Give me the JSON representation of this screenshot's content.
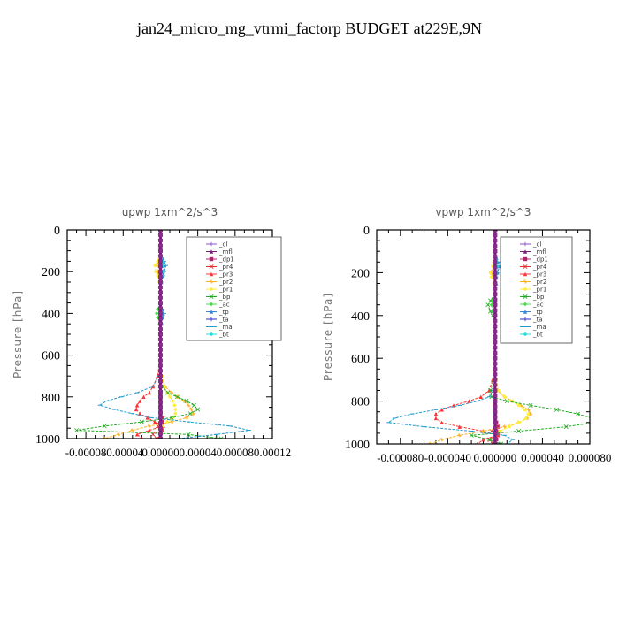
{
  "figure": {
    "title": "jan24_micro_mg_vtrmi_factorp  BUDGET at229E,9N"
  },
  "chart_data": [
    {
      "type": "line",
      "title": "upwp   1xm^2/s^3",
      "ylabel": "Pressure [hPa]",
      "xlabel": "",
      "ylim": [
        0,
        1000
      ],
      "y_inverted": true,
      "xlim": [
        -0.0001,
        0.00012
      ],
      "xticks": [
        -8e-05,
        -4e-05,
        0.0,
        4e-05,
        8e-05,
        0.00012
      ],
      "xtick_labels": [
        "-0.00008",
        "-0.00004",
        "0.00000",
        "0.00004",
        "0.00008",
        "0.00012"
      ],
      "yticks": [
        0,
        200,
        400,
        600,
        800,
        1000
      ],
      "ytick_labels": [
        "0",
        "200",
        "400",
        "600",
        "800",
        "1000"
      ],
      "legend_position": "top-right",
      "y": [
        0,
        100,
        150,
        170,
        200,
        220,
        250,
        300,
        350,
        380,
        400,
        420,
        450,
        500,
        600,
        700,
        750,
        780,
        800,
        820,
        840,
        860,
        880,
        900,
        920,
        940,
        960,
        980,
        1000
      ],
      "series": [
        {
          "name": "_cl",
          "color": "#8a4fc8",
          "marker": "plus",
          "values": [
            0,
            0,
            0,
            0,
            0,
            0,
            0,
            0,
            0,
            0,
            0,
            0,
            0,
            0,
            0,
            0,
            0,
            0,
            0,
            0,
            0,
            0,
            0,
            0,
            0,
            0,
            0,
            0,
            0
          ]
        },
        {
          "name": "_mfl",
          "color": "#7a1a7a",
          "marker": "tri",
          "values": [
            0,
            0,
            0,
            0,
            0,
            0,
            0,
            0,
            0,
            0,
            0,
            0,
            0,
            0,
            0,
            0,
            0,
            0,
            0,
            0,
            0,
            0,
            0,
            0,
            0,
            0,
            0,
            0,
            0
          ]
        },
        {
          "name": "_dp1",
          "color": "#b0206b",
          "marker": "square",
          "values": [
            0,
            0,
            0,
            0,
            0,
            0,
            0,
            0,
            0,
            0,
            0,
            0,
            0,
            0,
            0,
            0,
            0,
            0,
            0,
            0,
            0,
            0,
            0,
            1e-06,
            2e-06,
            2e-06,
            1e-06,
            0,
            0
          ]
        },
        {
          "name": "_pr4",
          "color": "#e03030",
          "marker": "x",
          "values": [
            0,
            0,
            0,
            0,
            0,
            0,
            0,
            0,
            0,
            0,
            0,
            0,
            0,
            0,
            0,
            0,
            0,
            0,
            0,
            0,
            0,
            0,
            0,
            3e-06,
            2e-06,
            -3e-06,
            2e-06,
            -8e-06,
            -4e-06
          ]
        },
        {
          "name": "_pr3",
          "color": "#ff3333",
          "marker": "tri",
          "values": [
            0,
            0,
            0,
            0,
            0,
            0,
            0,
            0,
            0,
            0,
            0,
            0,
            0,
            0,
            0,
            -3e-06,
            -8e-06,
            -1.2e-05,
            -1.8e-05,
            -2.2e-05,
            -2.5e-05,
            -2.6e-05,
            -2.2e-05,
            -1.4e-05,
            -6e-06,
            3e-06,
            -1.2e-05,
            -2.5e-05,
            -2e-05
          ]
        },
        {
          "name": "_pr2",
          "color": "#ffb020",
          "marker": "star",
          "values": [
            0,
            0,
            -2e-06,
            -4e-06,
            -3e-06,
            -2e-06,
            -1e-06,
            0,
            0,
            0,
            0,
            0,
            0,
            0,
            0,
            0,
            5e-06,
            1.2e-05,
            1.8e-05,
            2.5e-05,
            3e-05,
            3.3e-05,
            3.5e-05,
            2.8e-05,
            1.2e-05,
            -1.2e-05,
            -3e-05,
            -4.5e-05,
            -6e-05
          ]
        },
        {
          "name": "_pr1",
          "color": "#ffee33",
          "marker": "circle",
          "values": [
            0,
            0,
            -3e-06,
            -6e-06,
            -5e-06,
            -3e-06,
            -1e-06,
            0,
            0,
            0,
            0,
            0,
            0,
            0,
            0,
            2e-06,
            4e-06,
            7e-06,
            1e-05,
            1.3e-05,
            1.5e-05,
            1.6e-05,
            1.6e-05,
            1.3e-05,
            7e-06,
            2e-06,
            0,
            0,
            0
          ]
        },
        {
          "name": "_bp",
          "color": "#22aa22",
          "marker": "x",
          "values": [
            0,
            0,
            0,
            0,
            0,
            0,
            0,
            0,
            0,
            0,
            0,
            0,
            0,
            0,
            0,
            0,
            2e-06,
            8e-06,
            1.8e-05,
            2.8e-05,
            3.6e-05,
            4e-05,
            3.2e-05,
            1.2e-05,
            -2e-05,
            -6e-05,
            -9e-05,
            3e-05,
            6.5e-05
          ]
        },
        {
          "name": "_ac",
          "color": "#44dd44",
          "marker": "diamond",
          "values": [
            0,
            0,
            0,
            0,
            0,
            0,
            0,
            0,
            0,
            -3e-06,
            -4e-06,
            -3e-06,
            -1e-06,
            0,
            0,
            0,
            0,
            0,
            0,
            0,
            0,
            0,
            0,
            0,
            0,
            0,
            0,
            0,
            0
          ]
        },
        {
          "name": "_tp",
          "color": "#3388dd",
          "marker": "tri",
          "values": [
            0,
            0,
            3e-06,
            4e-06,
            3e-06,
            2e-06,
            1e-06,
            0,
            0,
            2e-06,
            3e-06,
            2e-06,
            1e-06,
            0,
            0,
            0,
            0,
            0,
            0,
            0,
            0,
            0,
            0,
            0,
            0,
            0,
            0,
            0,
            0
          ]
        },
        {
          "name": "_ta",
          "color": "#2a2acc",
          "marker": "plus",
          "values": [
            0,
            0,
            0,
            0,
            0,
            0,
            0,
            0,
            0,
            0,
            0,
            0,
            0,
            0,
            0,
            0,
            0,
            0,
            0,
            0,
            0,
            0,
            0,
            0,
            0,
            0,
            0,
            0,
            0
          ]
        },
        {
          "name": "_ma",
          "color": "#2299cc",
          "marker": "dash",
          "values": [
            0,
            0,
            4e-06,
            6e-06,
            4e-06,
            3e-06,
            1e-06,
            0,
            0,
            2e-06,
            4e-06,
            2e-06,
            1e-06,
            0,
            0,
            -2e-06,
            -8e-06,
            -2.5e-05,
            -4.2e-05,
            -5.8e-05,
            -6.5e-05,
            -5e-05,
            -3e-05,
            -1e-05,
            3e-05,
            7.5e-05,
            9.5e-05,
            6e-05,
            2e-05
          ]
        },
        {
          "name": "_bt",
          "color": "#22dddd",
          "marker": "circle",
          "values": [
            0,
            0,
            2e-06,
            3e-06,
            2e-06,
            1e-06,
            0,
            0,
            0,
            0,
            0,
            0,
            0,
            0,
            0,
            0,
            0,
            0,
            0,
            0,
            0,
            0,
            0,
            0,
            0,
            0,
            0,
            0,
            0
          ]
        }
      ]
    },
    {
      "type": "line",
      "title": "vpwp   1xm^2/s^3",
      "ylabel": "Pressure [hPa]",
      "xlabel": "",
      "ylim": [
        0,
        1000
      ],
      "y_inverted": true,
      "xlim": [
        -0.0001,
        8e-05
      ],
      "xticks": [
        -8e-05,
        -4e-05,
        0.0,
        4e-05,
        8e-05
      ],
      "xtick_labels": [
        "-0.000080",
        "-0.000040",
        "0.000000",
        "0.000040",
        "0.000080"
      ],
      "yticks": [
        0,
        200,
        400,
        600,
        800,
        1000
      ],
      "ytick_labels": [
        "0",
        "200",
        "400",
        "600",
        "800",
        "1000"
      ],
      "legend_position": "top-right",
      "y": [
        0,
        100,
        150,
        170,
        200,
        220,
        250,
        300,
        330,
        350,
        380,
        400,
        450,
        500,
        600,
        700,
        750,
        780,
        800,
        820,
        840,
        860,
        880,
        900,
        920,
        940,
        960,
        980,
        1000
      ],
      "series": [
        {
          "name": "_cl",
          "color": "#8a4fc8",
          "marker": "plus",
          "values": [
            0,
            0,
            0,
            0,
            0,
            0,
            0,
            0,
            0,
            0,
            0,
            0,
            0,
            0,
            0,
            0,
            0,
            0,
            0,
            0,
            0,
            0,
            0,
            0,
            0,
            0,
            0,
            0,
            0
          ]
        },
        {
          "name": "_mfl",
          "color": "#7a1a7a",
          "marker": "tri",
          "values": [
            0,
            0,
            0,
            0,
            0,
            0,
            0,
            0,
            0,
            0,
            0,
            0,
            0,
            0,
            0,
            0,
            0,
            0,
            0,
            0,
            0,
            0,
            0,
            0,
            0,
            0,
            0,
            0,
            0
          ]
        },
        {
          "name": "_dp1",
          "color": "#b0206b",
          "marker": "square",
          "values": [
            0,
            0,
            0,
            0,
            0,
            0,
            0,
            0,
            0,
            0,
            0,
            0,
            0,
            0,
            0,
            0,
            0,
            0,
            0,
            0,
            0,
            0,
            0,
            1e-06,
            2e-06,
            1e-06,
            2e-06,
            1e-06,
            0
          ]
        },
        {
          "name": "_pr4",
          "color": "#e03030",
          "marker": "x",
          "values": [
            0,
            0,
            0,
            0,
            0,
            0,
            0,
            0,
            0,
            0,
            0,
            0,
            0,
            0,
            0,
            0,
            0,
            0,
            0,
            0,
            0,
            0,
            0,
            0,
            2e-06,
            -3e-06,
            2e-06,
            -4e-06,
            -2e-06
          ]
        },
        {
          "name": "_pr3",
          "color": "#ff3333",
          "marker": "tri",
          "values": [
            0,
            0,
            0,
            0,
            0,
            0,
            0,
            0,
            0,
            0,
            0,
            0,
            0,
            0,
            0,
            -2e-06,
            -5e-06,
            -1.2e-05,
            -2.2e-05,
            -3.5e-05,
            -4.5e-05,
            -5e-05,
            -5e-05,
            -4.5e-05,
            -3e-05,
            -1e-05,
            2e-06,
            -1e-05,
            -1.5e-05
          ]
        },
        {
          "name": "_pr2",
          "color": "#ffb020",
          "marker": "star",
          "values": [
            0,
            0,
            -1e-06,
            -2e-06,
            -3e-06,
            -2e-06,
            -1e-06,
            0,
            0,
            0,
            0,
            0,
            0,
            0,
            0,
            0,
            2e-06,
            8e-06,
            1.5e-05,
            2.2e-05,
            2.8e-05,
            3e-05,
            2.7e-05,
            2e-05,
            8e-06,
            -1e-05,
            -3e-05,
            -4.5e-05,
            -5.5e-05
          ]
        },
        {
          "name": "_pr1",
          "color": "#ffee33",
          "marker": "circle",
          "values": [
            0,
            0,
            -1e-06,
            -2e-06,
            -4e-06,
            -3e-06,
            -1e-06,
            0,
            0,
            0,
            0,
            0,
            0,
            0,
            0,
            1e-06,
            3e-06,
            8e-06,
            1.4e-05,
            2e-05,
            2.5e-05,
            2.8e-05,
            2.6e-05,
            2e-05,
            1.2e-05,
            4e-06,
            0,
            0,
            0
          ]
        },
        {
          "name": "_bp",
          "color": "#22aa22",
          "marker": "x",
          "values": [
            0,
            0,
            0,
            0,
            0,
            0,
            0,
            0,
            -4e-06,
            -6e-06,
            -4e-06,
            -2e-06,
            0,
            0,
            0,
            -1e-06,
            -4e-06,
            -3e-06,
            1e-05,
            3e-05,
            5.2e-05,
            7e-05,
            8.2e-05,
            8.4e-05,
            6e-05,
            2e-05,
            -2e-05,
            -5e-06,
            5e-06
          ]
        },
        {
          "name": "_ac",
          "color": "#44dd44",
          "marker": "diamond",
          "values": [
            0,
            0,
            0,
            0,
            0,
            0,
            0,
            0,
            -2e-06,
            -3e-06,
            -2e-06,
            -1e-06,
            0,
            0,
            0,
            0,
            0,
            0,
            0,
            0,
            0,
            0,
            0,
            0,
            0,
            0,
            0,
            0,
            0
          ]
        },
        {
          "name": "_tp",
          "color": "#3388dd",
          "marker": "tri",
          "values": [
            0,
            0,
            2e-06,
            3e-06,
            2e-06,
            1e-06,
            1e-06,
            0,
            0,
            0,
            0,
            0,
            0,
            0,
            0,
            0,
            0,
            0,
            0,
            0,
            0,
            0,
            0,
            0,
            0,
            0,
            0,
            0,
            0
          ]
        },
        {
          "name": "_ta",
          "color": "#2a2acc",
          "marker": "plus",
          "values": [
            0,
            0,
            0,
            0,
            0,
            0,
            0,
            0,
            0,
            0,
            0,
            0,
            0,
            0,
            0,
            0,
            0,
            0,
            0,
            0,
            0,
            0,
            0,
            0,
            0,
            0,
            0,
            0,
            0
          ]
        },
        {
          "name": "_ma",
          "color": "#2299cc",
          "marker": "dash",
          "values": [
            0,
            0,
            3e-06,
            4e-06,
            2e-06,
            1e-06,
            0,
            0,
            0,
            0,
            0,
            0,
            0,
            0,
            0,
            0,
            -2e-06,
            -5e-06,
            -1.5e-05,
            -3e-05,
            -5e-05,
            -7e-05,
            -8.5e-05,
            -9e-05,
            -6e-05,
            -2e-05,
            8e-06,
            1.5e-05,
            1e-05
          ]
        },
        {
          "name": "_bt",
          "color": "#22dddd",
          "marker": "circle",
          "values": [
            0,
            0,
            1e-06,
            2e-06,
            1e-06,
            0,
            0,
            0,
            0,
            0,
            0,
            0,
            0,
            0,
            0,
            0,
            0,
            0,
            0,
            0,
            0,
            0,
            0,
            0,
            0,
            0,
            0,
            0,
            0
          ]
        }
      ]
    }
  ]
}
